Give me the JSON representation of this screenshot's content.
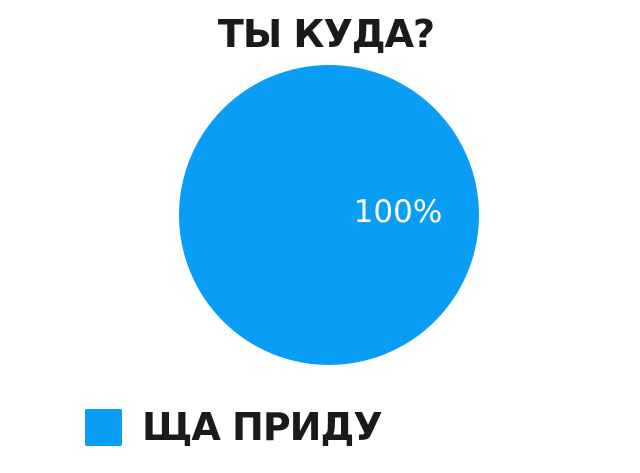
{
  "chart_data": {
    "type": "pie",
    "title": "ТЫ КУДА?",
    "slices": [
      {
        "name": "ЩА ПРИДУ",
        "value": 100,
        "label": "100%",
        "color": "#0a9df5"
      }
    ],
    "legend_placement": "bottom-left"
  }
}
